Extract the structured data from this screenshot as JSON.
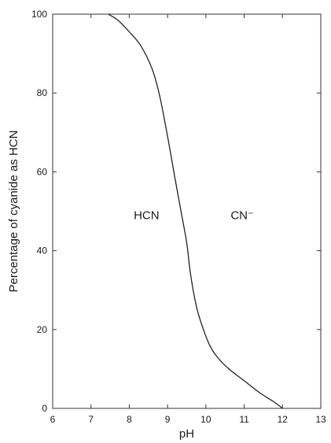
{
  "chart_data": {
    "type": "line",
    "title": "",
    "xlabel": "pH",
    "ylabel": "Percentage of cyanide as HCN",
    "xlim": [
      6,
      13
    ],
    "ylim": [
      0,
      100
    ],
    "x_ticks": [
      "6",
      "7",
      "8",
      "9",
      "10",
      "11",
      "12",
      "13"
    ],
    "y_ticks": [
      "0",
      "20",
      "40",
      "60",
      "80",
      "100"
    ],
    "grid": false,
    "series": [
      {
        "x": [
          7.45,
          7.7,
          8.0,
          8.3,
          8.6,
          8.8,
          9.0,
          9.2,
          9.35,
          9.5,
          9.6,
          9.75,
          9.9,
          10.1,
          10.3,
          10.6,
          11.0,
          11.4,
          11.8,
          12.0
        ],
        "y": [
          100,
          98.5,
          95.5,
          92,
          86,
          79,
          69,
          58,
          50,
          42,
          34,
          26,
          21,
          16,
          13,
          10,
          7,
          4,
          1.5,
          0
        ]
      }
    ],
    "annotations": [
      {
        "text": "HCN",
        "x": 8.45,
        "y": 48
      },
      {
        "text": "CN⁻",
        "x": 10.95,
        "y": 48
      }
    ],
    "line_color": "#222222",
    "axis_color": "#333333"
  }
}
